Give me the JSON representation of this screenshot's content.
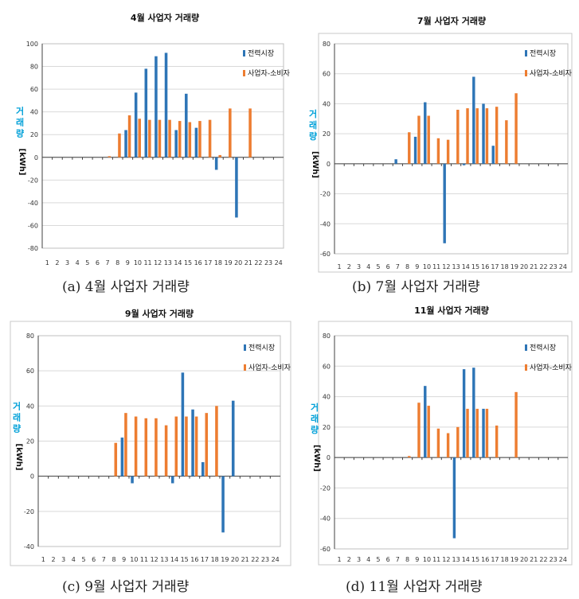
{
  "chart_data": [
    {
      "type": "bar",
      "title": "4월 사업자 거래량",
      "caption": "(a) 4월 사업자 거래량",
      "ylabel": "거래량",
      "yunit": "[kWh]",
      "ylim": [
        -80,
        100
      ],
      "ystep": 20,
      "legend_position": "top-right",
      "categories": [
        "1",
        "2",
        "3",
        "4",
        "5",
        "6",
        "7",
        "8",
        "9",
        "10",
        "11",
        "12",
        "13",
        "14",
        "15",
        "16",
        "17",
        "18",
        "19",
        "20",
        "21",
        "22",
        "23",
        "24"
      ],
      "series": [
        {
          "name": "전력시장",
          "color": "#2e75b6",
          "values": [
            0,
            0,
            0,
            0,
            0,
            0,
            0,
            0,
            24,
            57,
            78,
            89,
            92,
            24,
            56,
            26,
            0,
            -11,
            0,
            -53,
            0,
            0,
            0,
            0
          ]
        },
        {
          "name": "사업자-소비자",
          "color": "#ed7d31",
          "values": [
            0,
            0,
            0,
            0,
            0,
            0,
            1,
            21,
            37,
            34,
            33,
            33,
            33,
            32,
            31,
            32,
            33,
            2,
            43,
            0,
            43,
            0,
            0,
            0
          ]
        }
      ]
    },
    {
      "type": "bar",
      "title": "7월 사업자 거래량",
      "caption": "(b) 7월 사업자 거래량",
      "ylabel": "거래량",
      "yunit": "[kWh]",
      "ylim": [
        -60,
        80
      ],
      "ystep": 20,
      "legend_position": "top-right",
      "categories": [
        "1",
        "2",
        "3",
        "4",
        "5",
        "6",
        "7",
        "8",
        "9",
        "10",
        "11",
        "12",
        "13",
        "14",
        "15",
        "16",
        "17",
        "18",
        "19",
        "20",
        "21",
        "22",
        "23",
        "24"
      ],
      "series": [
        {
          "name": "전력시장",
          "color": "#2e75b6",
          "values": [
            0,
            0,
            0,
            0,
            0,
            0,
            3,
            0,
            18,
            41,
            0,
            -53,
            0,
            -1,
            58,
            40,
            12,
            0,
            0,
            0,
            0,
            0,
            0,
            0
          ]
        },
        {
          "name": "사업자-소비자",
          "color": "#ed7d31",
          "values": [
            0,
            0,
            0,
            0,
            0,
            0,
            0,
            21,
            32,
            32,
            17,
            16,
            36,
            37,
            37,
            37,
            38,
            29,
            47,
            0,
            0,
            0,
            0,
            0
          ]
        }
      ]
    },
    {
      "type": "bar",
      "title": "9월 사업자 거래량",
      "caption": "(c) 9월 사업자 거래량",
      "ylabel": "거래량",
      "yunit": "[kWh]",
      "ylim": [
        -40,
        80
      ],
      "ystep": 20,
      "legend_position": "top-right",
      "categories": [
        "1",
        "2",
        "3",
        "4",
        "5",
        "6",
        "7",
        "8",
        "9",
        "10",
        "11",
        "12",
        "13",
        "14",
        "15",
        "16",
        "17",
        "18",
        "19",
        "20",
        "21",
        "22",
        "23",
        "24"
      ],
      "series": [
        {
          "name": "전력시장",
          "color": "#2e75b6",
          "values": [
            0,
            0,
            0,
            0,
            0,
            0,
            0,
            0,
            22,
            -4,
            0,
            0,
            0,
            -4,
            59,
            38,
            8,
            0,
            -32,
            43,
            0,
            0,
            0,
            0
          ]
        },
        {
          "name": "사업자-소비자",
          "color": "#ed7d31",
          "values": [
            0,
            0,
            0,
            0,
            0,
            0,
            0,
            19,
            36,
            34,
            33,
            33,
            29,
            34,
            34,
            34,
            36,
            40,
            0,
            0,
            0,
            0,
            0,
            0
          ]
        }
      ]
    },
    {
      "type": "bar",
      "title": "11월 사업자 거래량",
      "caption": "(d) 11월 사업자 거래량",
      "ylabel": "거래량",
      "yunit": "[kWh]",
      "ylim": [
        -60,
        80
      ],
      "ystep": 20,
      "legend_position": "top-right",
      "categories": [
        "1",
        "2",
        "3",
        "4",
        "5",
        "6",
        "7",
        "8",
        "9",
        "10",
        "11",
        "12",
        "13",
        "14",
        "15",
        "16",
        "17",
        "18",
        "19",
        "20",
        "21",
        "22",
        "23",
        "24"
      ],
      "series": [
        {
          "name": "전력시장",
          "color": "#2e75b6",
          "values": [
            0,
            0,
            0,
            0,
            0,
            0,
            0,
            0,
            0,
            47,
            0,
            0,
            -53,
            58,
            59,
            32,
            0,
            0,
            0,
            0,
            0,
            0,
            0,
            0
          ]
        },
        {
          "name": "사업자-소비자",
          "color": "#ed7d31",
          "values": [
            0,
            0,
            0,
            0,
            0,
            0,
            0,
            1,
            36,
            34,
            19,
            16,
            20,
            32,
            32,
            32,
            21,
            0,
            43,
            0,
            0,
            0,
            0,
            0
          ]
        }
      ]
    }
  ]
}
